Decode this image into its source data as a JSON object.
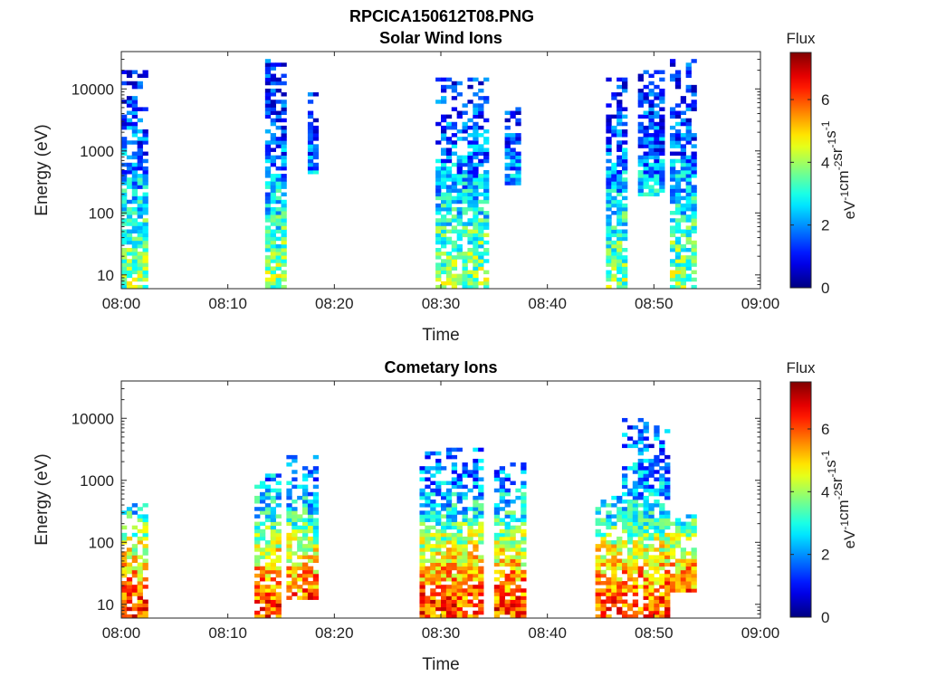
{
  "figure": {
    "title": "RPCICA150612T08.PNG"
  },
  "chart_data": [
    {
      "type": "heatmap",
      "title": "Solar Wind Ions",
      "xlabel": "Time",
      "ylabel": "Energy (eV)",
      "x_range": [
        "08:00",
        "09:00"
      ],
      "x_ticks": [
        "08:00",
        "08:10",
        "08:20",
        "08:30",
        "08:40",
        "08:50",
        "09:00"
      ],
      "y_scale": "log",
      "y_range": [
        6,
        40000
      ],
      "y_ticks": [
        10,
        100,
        1000,
        10000
      ],
      "y_tick_labels": [
        "10",
        "100",
        "1000",
        "10000"
      ],
      "colorbar": {
        "title": "Flux",
        "range": [
          0,
          7.5
        ],
        "ticks": [
          0,
          2,
          4,
          6
        ],
        "tick_labels": [
          "0",
          "2",
          "4",
          "6"
        ],
        "colormap": "jet",
        "label_prefix": "eV",
        "label_segments": [
          {
            "text": "eV",
            "sup": "-1"
          },
          {
            "text": "cm",
            "sup": "-2"
          },
          {
            "text": "sr",
            "sup": "-1"
          },
          {
            "text": "s",
            "sup": "-1"
          }
        ]
      },
      "clusters": [
        {
          "t_start": 0.0,
          "t_end": 2.5,
          "e_min": 6,
          "e_max": 20000
        },
        {
          "t_start": 13.3,
          "t_end": 15.3,
          "e_min": 6,
          "e_max": 30000
        },
        {
          "t_start": 17.3,
          "t_end": 18.7,
          "e_min": 400,
          "e_max": 10000
        },
        {
          "t_start": 29.5,
          "t_end": 34.6,
          "e_min": 6,
          "e_max": 15000
        },
        {
          "t_start": 36.0,
          "t_end": 37.6,
          "e_min": 300,
          "e_max": 8000
        },
        {
          "t_start": 45.7,
          "t_end": 47.6,
          "e_min": 6,
          "e_max": 15000
        },
        {
          "t_start": 48.3,
          "t_end": 50.9,
          "e_min": 200,
          "e_max": 20000
        },
        {
          "t_start": 51.6,
          "t_end": 54.1,
          "e_min": 6,
          "e_max": 30000
        }
      ],
      "flux_profile": [
        {
          "energy": 10,
          "flux": 3.8
        },
        {
          "energy": 50,
          "flux": 3.2
        },
        {
          "energy": 200,
          "flux": 2.5
        },
        {
          "energy": 1000,
          "flux": 1.7
        },
        {
          "energy": 10000,
          "flux": 1.0
        }
      ]
    },
    {
      "type": "heatmap",
      "title": "Cometary Ions",
      "xlabel": "Time",
      "ylabel": "Energy (eV)",
      "x_range": [
        "08:00",
        "09:00"
      ],
      "x_ticks": [
        "08:00",
        "08:10",
        "08:20",
        "08:30",
        "08:40",
        "08:50",
        "09:00"
      ],
      "y_scale": "log",
      "y_range": [
        6,
        40000
      ],
      "y_ticks": [
        10,
        100,
        1000,
        10000
      ],
      "y_tick_labels": [
        "10",
        "100",
        "1000",
        "10000"
      ],
      "colorbar": {
        "title": "Flux",
        "range": [
          0,
          7.5
        ],
        "ticks": [
          0,
          2,
          4,
          6
        ],
        "tick_labels": [
          "0",
          "2",
          "4",
          "6"
        ],
        "colormap": "jet",
        "label_prefix": "eV",
        "label_segments": [
          {
            "text": "eV",
            "sup": "-1"
          },
          {
            "text": "cm",
            "sup": "-2"
          },
          {
            "text": "sr",
            "sup": "-1"
          },
          {
            "text": "s",
            "sup": "-1"
          }
        ]
      },
      "clusters": [
        {
          "t_start": 0.0,
          "t_end": 2.6,
          "e_min": 6,
          "e_max": 400
        },
        {
          "t_start": 12.6,
          "t_end": 14.8,
          "e_min": 6,
          "e_max": 1500
        },
        {
          "t_start": 15.6,
          "t_end": 18.5,
          "e_min": 12,
          "e_max": 2500
        },
        {
          "t_start": 28.2,
          "t_end": 34.0,
          "e_min": 6,
          "e_max": 3500
        },
        {
          "t_start": 35.2,
          "t_end": 37.9,
          "e_min": 6,
          "e_max": 2000
        },
        {
          "t_start": 44.6,
          "t_end": 47.0,
          "e_min": 6,
          "e_max": 600
        },
        {
          "t_start": 47.2,
          "t_end": 51.3,
          "e_min": 6,
          "e_max": 10000
        },
        {
          "t_start": 51.3,
          "t_end": 54.0,
          "e_min": 15,
          "e_max": 300
        }
      ],
      "flux_profile": [
        {
          "energy": 10,
          "flux": 6.0
        },
        {
          "energy": 30,
          "flux": 5.3
        },
        {
          "energy": 100,
          "flux": 4.2
        },
        {
          "energy": 300,
          "flux": 2.8
        },
        {
          "energy": 1000,
          "flux": 2.0
        },
        {
          "energy": 10000,
          "flux": 1.5
        }
      ]
    }
  ]
}
